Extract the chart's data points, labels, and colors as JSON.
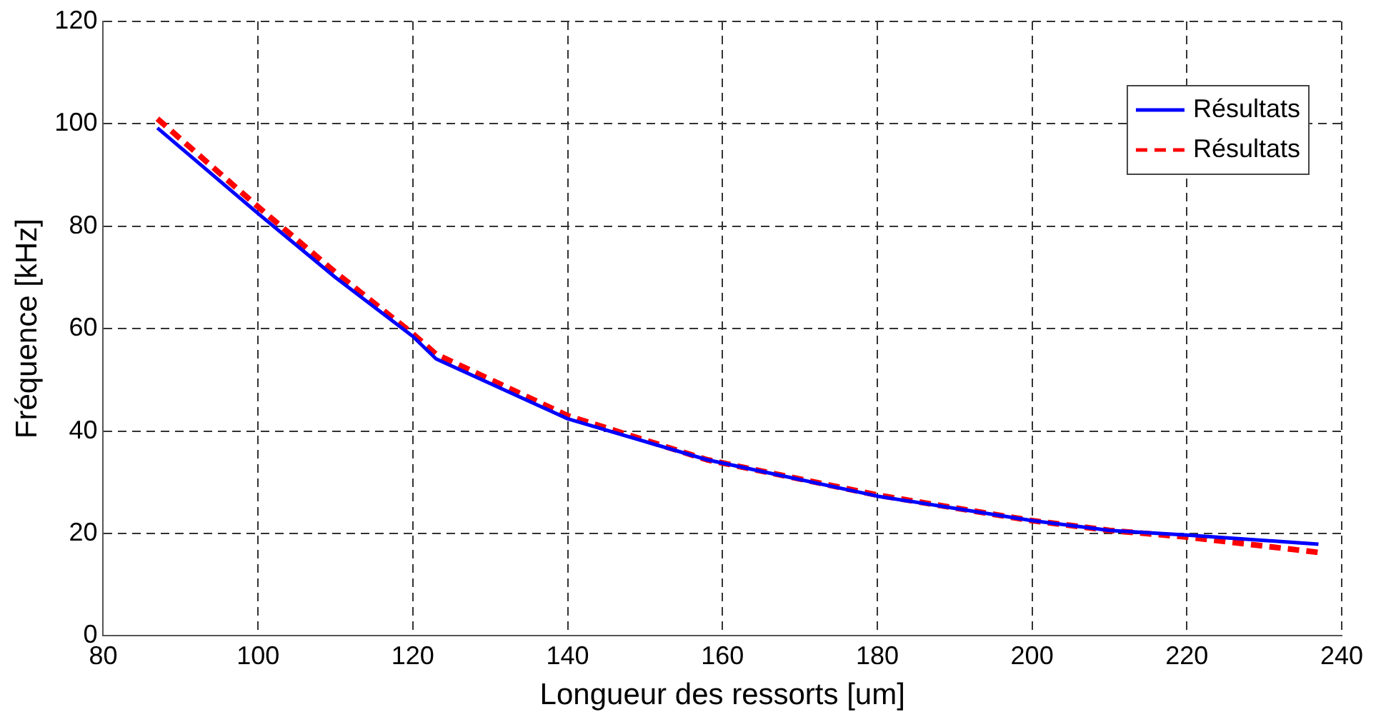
{
  "chart_data": {
    "type": "line",
    "xlabel": "Longueur des ressorts [um]",
    "ylabel": "Fréquence [kHz]",
    "xlim": [
      80,
      240
    ],
    "xticks": [
      80,
      100,
      120,
      140,
      160,
      180,
      200,
      220,
      240
    ],
    "ylim": [
      0,
      120
    ],
    "yticks": [
      0,
      20,
      40,
      60,
      80,
      100,
      120
    ],
    "grid": true,
    "legend": "top right",
    "marker": "none",
    "series": [
      {
        "name": "Résultats",
        "color": "#0000ff",
        "line_style": "solid",
        "x": [
          87,
          100,
          110,
          120,
          123,
          140,
          158,
          180,
          200,
          210,
          220,
          237
        ],
        "values": [
          99.2,
          82.5,
          70,
          58.5,
          54.1,
          42.4,
          34.4,
          27.3,
          22.5,
          20.6,
          19.7,
          17.9
        ]
      },
      {
        "name": "Résultats",
        "color": "#ff0000",
        "line_style": "dashed",
        "x": [
          87,
          100,
          110,
          120,
          123,
          140,
          158,
          180,
          200,
          210,
          220,
          237
        ],
        "values": [
          101,
          83.8,
          71,
          59,
          55,
          43,
          34.4,
          27.5,
          22.5,
          20.6,
          19.3,
          16.3
        ]
      }
    ]
  }
}
